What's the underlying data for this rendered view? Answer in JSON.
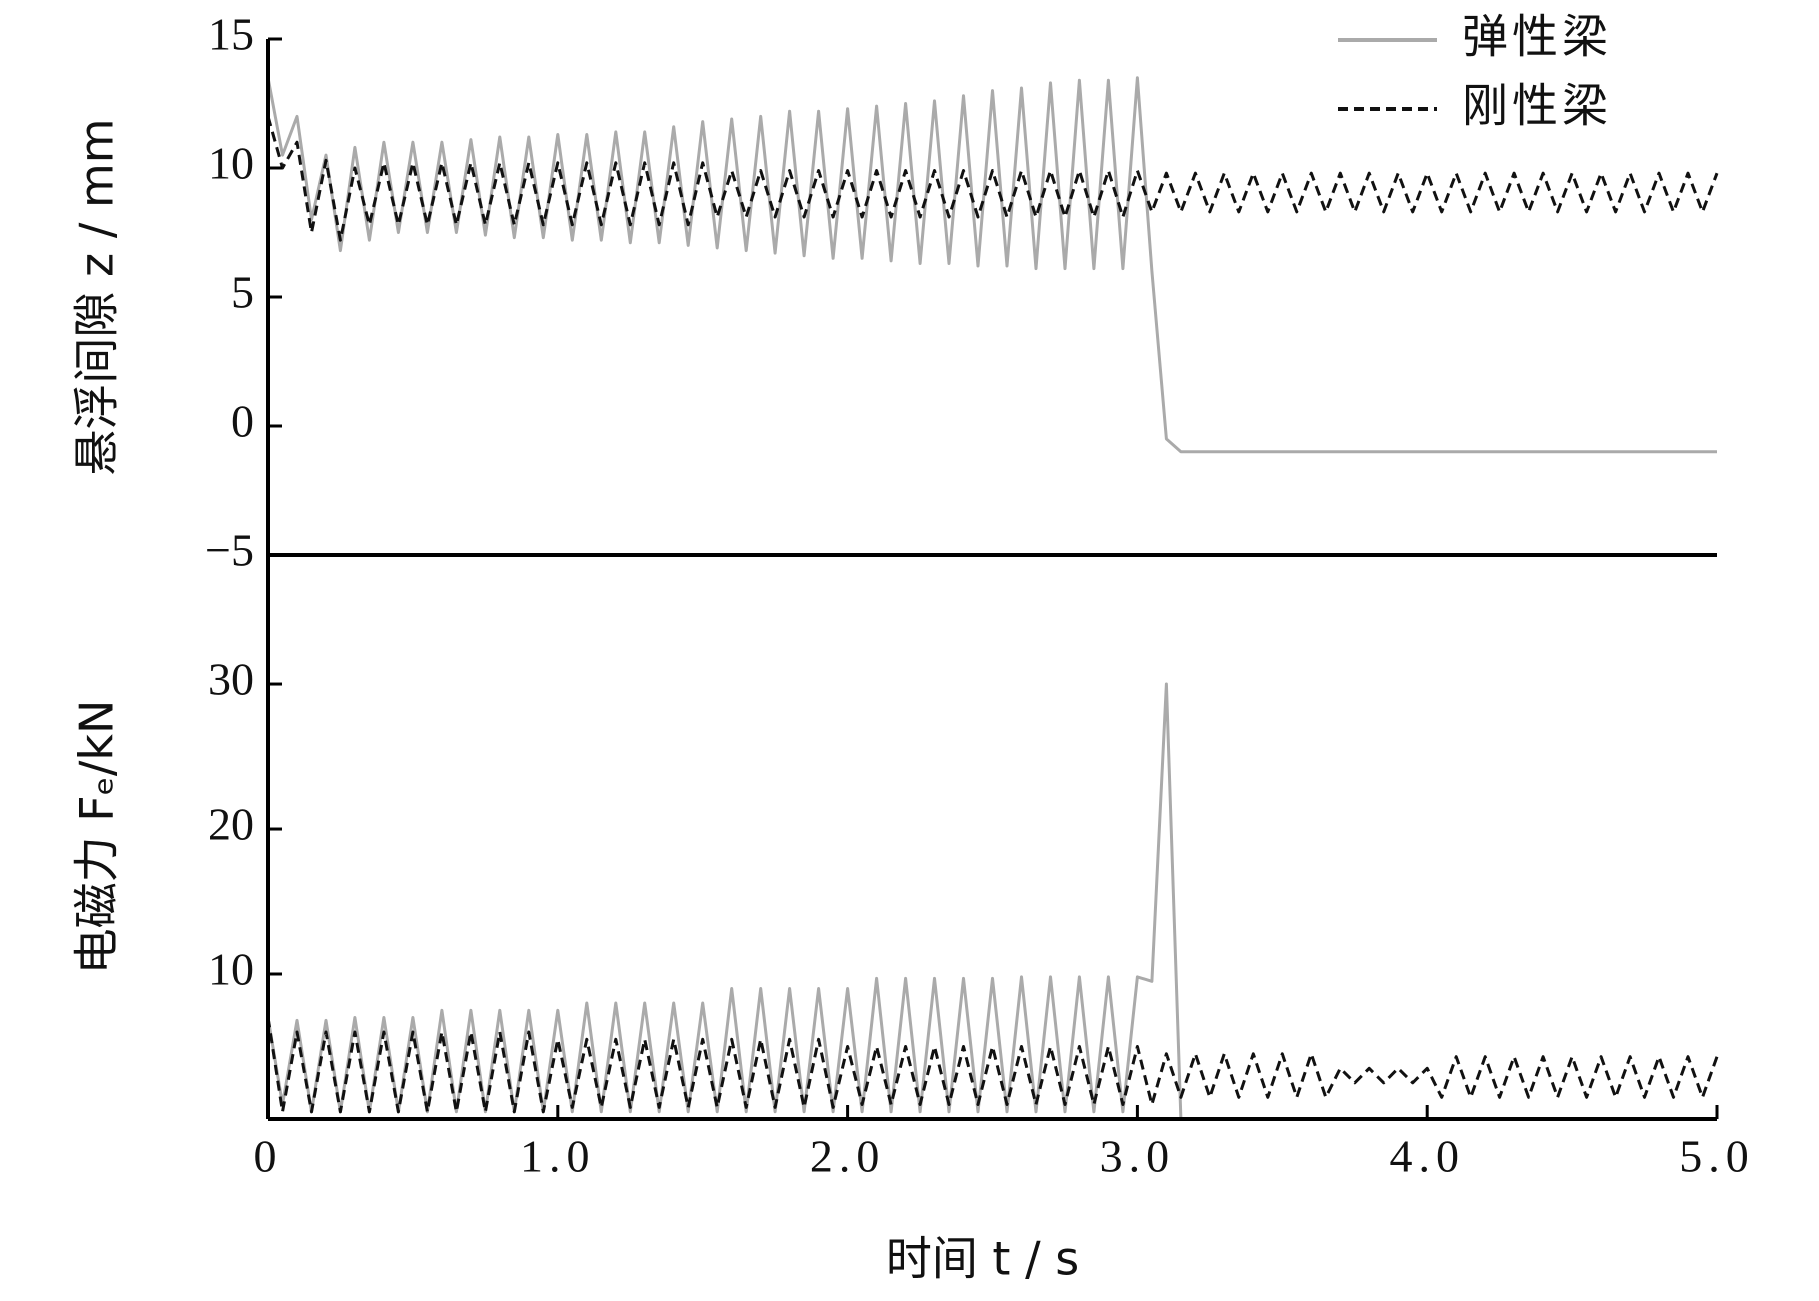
{
  "chart_data": [
    {
      "type": "line",
      "ylabel": "悬浮间隙 z / mm",
      "x": [
        0,
        0.05,
        0.1,
        0.15,
        0.2,
        0.25,
        0.3,
        0.35,
        0.4,
        0.45,
        0.5,
        0.55,
        0.6,
        0.65,
        0.7,
        0.75,
        0.8,
        0.85,
        0.9,
        0.95,
        1,
        1.05,
        1.1,
        1.15,
        1.2,
        1.25,
        1.3,
        1.35,
        1.4,
        1.45,
        1.5,
        1.55,
        1.6,
        1.65,
        1.7,
        1.75,
        1.8,
        1.85,
        1.9,
        1.95,
        2,
        2.05,
        2.1,
        2.15,
        2.2,
        2.25,
        2.3,
        2.35,
        2.4,
        2.45,
        2.5,
        2.55,
        2.6,
        2.65,
        2.7,
        2.75,
        2.8,
        2.85,
        2.9,
        2.95,
        3,
        3.05,
        3.1,
        3.15,
        3.2,
        3.25,
        3.3,
        3.35,
        3.4,
        3.45,
        3.5,
        3.55,
        3.6,
        3.65,
        3.7,
        3.75,
        3.8,
        3.85,
        3.9,
        3.95,
        4,
        4.05,
        4.1,
        4.15,
        4.2,
        4.25,
        4.3,
        4.35,
        4.4,
        4.45,
        4.5,
        4.55,
        4.6,
        4.65,
        4.7,
        4.75,
        4.8,
        4.85,
        4.9,
        4.95,
        5
      ],
      "series": [
        {
          "name": "弹性梁",
          "color": "#aaaaaa",
          "dash": false,
          "values": [
            13.5,
            10.5,
            12,
            8,
            10.5,
            6.8,
            10.8,
            7.2,
            11,
            7.5,
            11,
            7.5,
            11,
            7.5,
            11.1,
            7.4,
            11.2,
            7.3,
            11.2,
            7.3,
            11.3,
            7.2,
            11.3,
            7.2,
            11.4,
            7.1,
            11.4,
            7.1,
            11.6,
            7,
            11.8,
            6.9,
            11.9,
            6.8,
            12,
            6.7,
            12.2,
            6.6,
            12.2,
            6.5,
            12.3,
            6.5,
            12.4,
            6.4,
            12.5,
            6.3,
            12.6,
            6.3,
            12.8,
            6.2,
            13,
            6.2,
            13.1,
            6.1,
            13.3,
            6.1,
            13.4,
            6.1,
            13.4,
            6.1,
            13.5,
            6,
            -0.5,
            -1,
            -1,
            -1,
            -1,
            -1,
            -1,
            -1,
            -1,
            -1,
            -1,
            -1,
            -1,
            -1,
            -1,
            -1,
            -1,
            -1,
            -1,
            -1,
            -1,
            -1,
            -1,
            -1,
            -1,
            -1,
            -1,
            -1,
            -1,
            -1,
            -1,
            -1,
            -1,
            -1,
            -1,
            -1,
            -1,
            -1,
            -1
          ]
        },
        {
          "name": "刚性梁",
          "color": "#111111",
          "dash": true,
          "values": [
            12,
            10,
            11,
            7.5,
            10.3,
            7.2,
            10,
            7.8,
            10.2,
            7.8,
            10.2,
            7.8,
            10.2,
            7.8,
            10.2,
            7.8,
            10.2,
            7.8,
            10.2,
            7.8,
            10.2,
            7.8,
            10.2,
            7.8,
            10.2,
            7.8,
            10.2,
            7.8,
            10.2,
            7.8,
            10.2,
            8.1,
            9.9,
            8.1,
            9.9,
            8.1,
            9.9,
            8.1,
            9.9,
            8.1,
            9.9,
            8.1,
            9.9,
            8.1,
            9.9,
            8.1,
            9.9,
            8.1,
            9.9,
            8.1,
            9.9,
            8.1,
            9.9,
            8.1,
            9.9,
            8.1,
            9.9,
            8.1,
            9.9,
            8.1,
            9.9,
            8.3,
            9.8,
            8.3,
            9.8,
            8.3,
            9.8,
            8.3,
            9.8,
            8.3,
            9.8,
            8.3,
            9.8,
            8.3,
            9.8,
            8.3,
            9.8,
            8.3,
            9.8,
            8.3,
            9.8,
            8.3,
            9.8,
            8.3,
            9.8,
            8.3,
            9.8,
            8.3,
            9.8,
            8.3,
            9.8,
            8.3,
            9.8,
            8.3,
            9.8,
            8.3,
            9.8,
            8.3,
            9.8,
            8.3,
            9.8
          ]
        }
      ],
      "xlim": [
        0,
        5
      ],
      "ylim": [
        -5,
        15
      ],
      "yticks": [
        -5,
        0,
        5,
        10,
        15
      ],
      "legend": "upper right"
    },
    {
      "type": "line",
      "ylabel": "电磁力 Fₑ/kN",
      "xlabel": "时间 t / s",
      "x": [
        0,
        0.05,
        0.1,
        0.15,
        0.2,
        0.25,
        0.3,
        0.35,
        0.4,
        0.45,
        0.5,
        0.55,
        0.6,
        0.65,
        0.7,
        0.75,
        0.8,
        0.85,
        0.9,
        0.95,
        1,
        1.05,
        1.1,
        1.15,
        1.2,
        1.25,
        1.3,
        1.35,
        1.4,
        1.45,
        1.5,
        1.55,
        1.6,
        1.65,
        1.7,
        1.75,
        1.8,
        1.85,
        1.9,
        1.95,
        2,
        2.05,
        2.1,
        2.15,
        2.2,
        2.25,
        2.3,
        2.35,
        2.4,
        2.45,
        2.5,
        2.55,
        2.6,
        2.65,
        2.7,
        2.75,
        2.8,
        2.85,
        2.9,
        2.95,
        3,
        3.05,
        3.1,
        3.15,
        3.2,
        3.25,
        3.3,
        3.35,
        3.4,
        3.45,
        3.5,
        3.55,
        3.6,
        3.65,
        3.7,
        3.75,
        3.8,
        3.85,
        3.9,
        3.95,
        4,
        4.05,
        4.1,
        4.15,
        4.2,
        4.25,
        4.3,
        4.35,
        4.4,
        4.45,
        4.5,
        4.55,
        4.6,
        4.65,
        4.7,
        4.75,
        4.8,
        4.85,
        4.9,
        4.95,
        5
      ],
      "series": [
        {
          "name": "弹性梁",
          "color": "#aaaaaa",
          "dash": false,
          "values": [
            7,
            1,
            6.8,
            0.5,
            6.8,
            0.5,
            7,
            0.5,
            7,
            0.5,
            7,
            0.5,
            7.5,
            0.5,
            7.5,
            0.5,
            7.5,
            0.5,
            7.5,
            0.5,
            7.5,
            0.5,
            8,
            0.5,
            8,
            0.5,
            8,
            0.5,
            8,
            0.5,
            8,
            0.5,
            9,
            0.5,
            9,
            0.5,
            9,
            0.5,
            9,
            0.5,
            9,
            0.5,
            9.7,
            0.5,
            9.7,
            0.5,
            9.7,
            0.5,
            9.7,
            0.5,
            9.7,
            0.5,
            9.8,
            0.5,
            9.8,
            0.5,
            9.8,
            0.5,
            9.8,
            0.5,
            9.8,
            9.5,
            30,
            0,
            0,
            0,
            0,
            0,
            0,
            0,
            0,
            0,
            0,
            0,
            0,
            0,
            0,
            0,
            0,
            0,
            0,
            0,
            0,
            0,
            0,
            0,
            0,
            0,
            0,
            0,
            0,
            0,
            0,
            0,
            0,
            0,
            0,
            0,
            0,
            0,
            0
          ]
        },
        {
          "name": "刚性梁",
          "color": "#111111",
          "dash": true,
          "values": [
            7,
            0.5,
            6,
            0.5,
            6,
            0.5,
            6,
            0.5,
            6,
            0.5,
            6,
            0.5,
            6,
            0.5,
            6,
            0.5,
            6,
            0.5,
            6,
            0.5,
            5.5,
            0.8,
            5.5,
            0.8,
            5.5,
            0.8,
            5.5,
            0.8,
            5.5,
            0.8,
            5.5,
            0.8,
            5.5,
            0.8,
            5.5,
            0.8,
            5.5,
            0.8,
            5.5,
            0.8,
            5,
            1,
            5,
            1,
            5,
            1,
            5,
            1,
            5,
            1,
            5,
            1,
            5,
            1,
            5,
            1,
            5,
            1,
            5,
            1,
            5,
            1,
            4.5,
            1.5,
            4.5,
            1.5,
            4.5,
            1.5,
            4.5,
            1.5,
            4.5,
            1.5,
            4.5,
            1.5,
            3.5,
            2.5,
            3.5,
            2.5,
            3.5,
            2.5,
            3.5,
            1.5,
            4.3,
            1.5,
            4.3,
            1.5,
            4.3,
            1.5,
            4.3,
            1.5,
            4.3,
            1.5,
            4.3,
            1.5,
            4.3,
            1.5,
            4.3,
            1.5,
            4.3,
            1.5,
            4.3
          ]
        }
      ],
      "xlim": [
        0,
        5
      ],
      "ylim": [
        0,
        38.9
      ],
      "yticks": [
        10,
        20,
        30
      ],
      "xticks": [
        0,
        {
          "value": 1,
          "label": "1.0"
        },
        {
          "value": 2,
          "label": "2.0"
        },
        {
          "value": 3,
          "label": "3.0"
        },
        {
          "value": 4,
          "label": "4.0"
        },
        {
          "value": 5,
          "label": "5.0"
        }
      ]
    }
  ]
}
